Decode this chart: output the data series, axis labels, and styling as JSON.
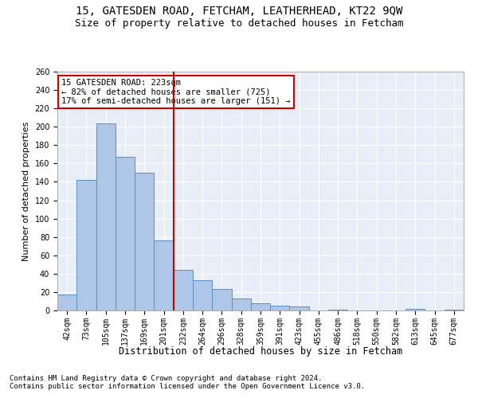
{
  "title1": "15, GATESDEN ROAD, FETCHAM, LEATHERHEAD, KT22 9QW",
  "title2": "Size of property relative to detached houses in Fetcham",
  "xlabel": "Distribution of detached houses by size in Fetcham",
  "ylabel": "Number of detached properties",
  "bar_labels": [
    "42sqm",
    "73sqm",
    "105sqm",
    "137sqm",
    "169sqm",
    "201sqm",
    "232sqm",
    "264sqm",
    "296sqm",
    "328sqm",
    "359sqm",
    "391sqm",
    "423sqm",
    "455sqm",
    "486sqm",
    "518sqm",
    "550sqm",
    "582sqm",
    "613sqm",
    "645sqm",
    "677sqm"
  ],
  "bar_values": [
    17,
    142,
    204,
    167,
    150,
    76,
    44,
    33,
    23,
    13,
    8,
    5,
    4,
    0,
    1,
    0,
    0,
    0,
    2,
    0,
    1
  ],
  "bar_color": "#aec6e8",
  "bar_edge_color": "#5a8fc2",
  "vline_x": 5.5,
  "vline_color": "#cc0000",
  "annotation_line1": "15 GATESDEN ROAD: 223sqm",
  "annotation_line2": "← 82% of detached houses are smaller (725)",
  "annotation_line3": "17% of semi-detached houses are larger (151) →",
  "annotation_box_color": "#ffffff",
  "annotation_box_edge": "#cc0000",
  "ylim": [
    0,
    260
  ],
  "yticks": [
    0,
    20,
    40,
    60,
    80,
    100,
    120,
    140,
    160,
    180,
    200,
    220,
    240,
    260
  ],
  "bg_color": "#e8eef7",
  "footer1": "Contains HM Land Registry data © Crown copyright and database right 2024.",
  "footer2": "Contains public sector information licensed under the Open Government Licence v3.0.",
  "title1_fontsize": 10,
  "title2_fontsize": 9,
  "xlabel_fontsize": 8.5,
  "ylabel_fontsize": 8,
  "tick_fontsize": 7,
  "footer_fontsize": 6.5,
  "annot_fontsize": 7.5
}
